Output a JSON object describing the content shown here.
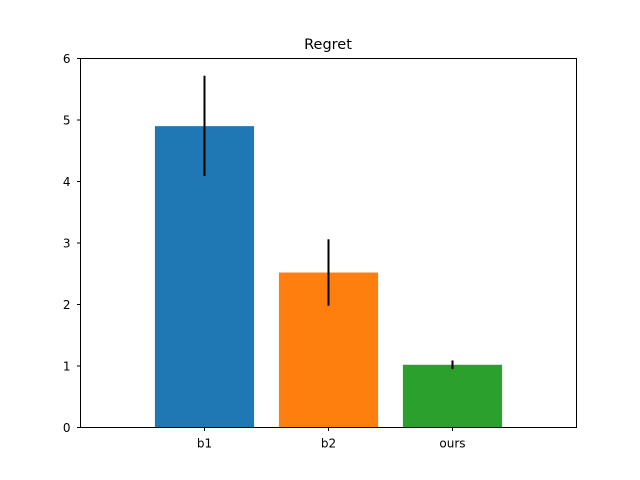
{
  "chart_data": {
    "type": "bar",
    "title": "Regret",
    "xlabel": "",
    "ylabel": "",
    "categories": [
      "b1",
      "b2",
      "ours"
    ],
    "values": [
      4.9,
      2.52,
      1.02
    ],
    "error_low": [
      4.09,
      1.98,
      0.95
    ],
    "error_high": [
      5.72,
      3.06,
      1.09
    ],
    "ylim": [
      0,
      6
    ],
    "yticks": [
      0,
      1,
      2,
      3,
      4,
      5,
      6
    ],
    "colors": [
      "#1f77b4",
      "#ff7f0e",
      "#2ca02c"
    ],
    "error_color": "#000000",
    "grid": false,
    "legend": false
  }
}
